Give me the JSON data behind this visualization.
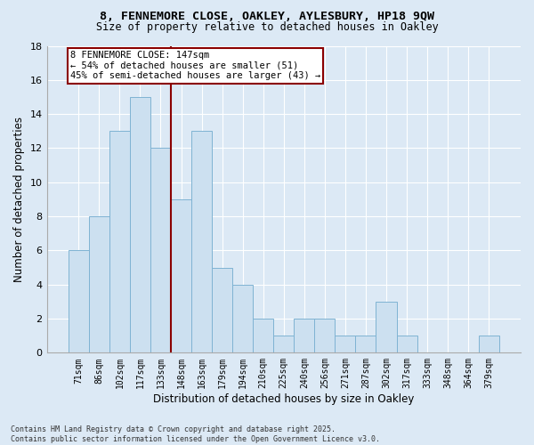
{
  "title_line1": "8, FENNEMORE CLOSE, OAKLEY, AYLESBURY, HP18 9QW",
  "title_line2": "Size of property relative to detached houses in Oakley",
  "xlabel": "Distribution of detached houses by size in Oakley",
  "ylabel": "Number of detached properties",
  "bar_labels": [
    "71sqm",
    "86sqm",
    "102sqm",
    "117sqm",
    "133sqm",
    "148sqm",
    "163sqm",
    "179sqm",
    "194sqm",
    "210sqm",
    "225sqm",
    "240sqm",
    "256sqm",
    "271sqm",
    "287sqm",
    "302sqm",
    "317sqm",
    "333sqm",
    "348sqm",
    "364sqm",
    "379sqm"
  ],
  "bar_values": [
    6,
    8,
    13,
    15,
    12,
    9,
    13,
    5,
    4,
    2,
    1,
    2,
    2,
    1,
    1,
    3,
    1,
    0,
    0,
    0,
    1
  ],
  "bar_color": "#cce0f0",
  "bar_edge_color": "#7fb3d3",
  "vline_color": "#8b0000",
  "vline_x_index": 4.5,
  "annotation_text": "8 FENNEMORE CLOSE: 147sqm\n← 54% of detached houses are smaller (51)\n45% of semi-detached houses are larger (43) →",
  "annotation_box_facecolor": "#ffffff",
  "annotation_box_edgecolor": "#8b0000",
  "ylim": [
    0,
    18
  ],
  "yticks": [
    0,
    2,
    4,
    6,
    8,
    10,
    12,
    14,
    16,
    18
  ],
  "footer_text": "Contains HM Land Registry data © Crown copyright and database right 2025.\nContains public sector information licensed under the Open Government Licence v3.0.",
  "bg_color": "#dce9f5",
  "plot_bg_color": "#dce9f5",
  "grid_color": "#ffffff",
  "spine_color": "#aaaaaa"
}
